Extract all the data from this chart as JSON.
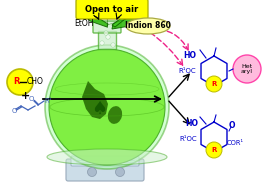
{
  "bg_color": "#ffffff",
  "open_to_air_text": "Open to air",
  "open_to_air_bg": "#ffff00",
  "etoh_text": "EtOH",
  "indion_text": "Indion 860",
  "indion_bg": "#ffffaa",
  "flask_color": "#88ee44",
  "flask_edge": "#44aa22",
  "globe_color": "#66dd22",
  "globe_land": "#226600",
  "reactant_R_text": "R",
  "reactant_CHO": "CHO",
  "reactant_R_bg": "#ffff00",
  "reactant_R_color": "#ff0000",
  "plus_text": "+",
  "diketone_color": "#4466bb",
  "arrow_color": "#000000",
  "dashed_arrow_color": "#ee2288",
  "product1_label_color": "#0000cc",
  "product1_Het_bg": "#ffbbdd",
  "product1_Het_edge": "#ff44aa",
  "product2_label_color": "#0000cc",
  "leaf_green": "#33bb11",
  "leaf_dark": "#116600",
  "R_circle_bg": "#ffff00",
  "R_circle_color": "#ff0000",
  "hotplate_color": "#ccdde8",
  "hotplate_edge": "#99aabb",
  "spade_color": "#115500",
  "neck_color": "#cceecc",
  "globe_line": "#44aa11"
}
